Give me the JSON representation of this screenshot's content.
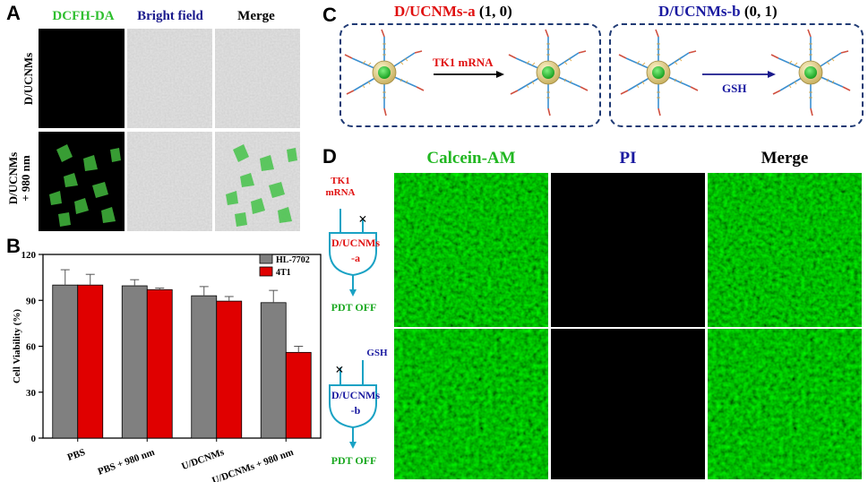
{
  "panel_a": {
    "label": "A",
    "col_headers": [
      "DCFH-DA",
      "Bright field",
      "Merge"
    ],
    "row_labels": [
      "D/UCNMs",
      "D/UCNMs\n+ 980 nm"
    ]
  },
  "panel_b": {
    "label": "B",
    "chart_data": {
      "type": "bar",
      "categories": [
        "PBS",
        "PBS + 980 nm",
        "U/DCNMs",
        "U/DCNMs + 980 nm"
      ],
      "series": [
        {
          "name": "HL-7702",
          "values": [
            100,
            99.5,
            93,
            88.5
          ],
          "errors": [
            10,
            4,
            6,
            8
          ],
          "color": "#808080"
        },
        {
          "name": "4T1",
          "values": [
            100,
            97,
            89.5,
            56
          ],
          "errors": [
            7,
            1,
            3,
            4
          ],
          "color": "#e00000"
        }
      ],
      "ylabel": "Cell Viability (%)",
      "ylim": [
        0,
        120
      ],
      "yticks": [
        0,
        30,
        60,
        90,
        120
      ],
      "legend": "top-right"
    }
  },
  "panel_c": {
    "label": "C",
    "left_title_name": "D/UCNMs-a",
    "left_title_code": "(1, 0)",
    "right_title_name": "D/UCNMs-b",
    "right_title_code": "(0, 1)",
    "left_arrow_label": "TK1 mRNA",
    "right_arrow_label": "GSH"
  },
  "panel_d": {
    "label": "D",
    "col_headers": [
      "Calcein-AM",
      "PI",
      "Merge"
    ],
    "gate_a": {
      "input": "TK1\nmRNA",
      "cross": "×",
      "gate_name": "D/UCNMs",
      "gate_suffix": "-a",
      "output": "PDT OFF"
    },
    "gate_b": {
      "input": "GSH",
      "cross": "×",
      "gate_name": "D/UCNMs",
      "gate_suffix": "-b",
      "output": "PDT OFF"
    }
  },
  "colors": {
    "green": "#22b722",
    "blue": "#1a1aa0",
    "red": "#e01010",
    "gate": "#1aa2c4",
    "output": "#1aa820"
  }
}
